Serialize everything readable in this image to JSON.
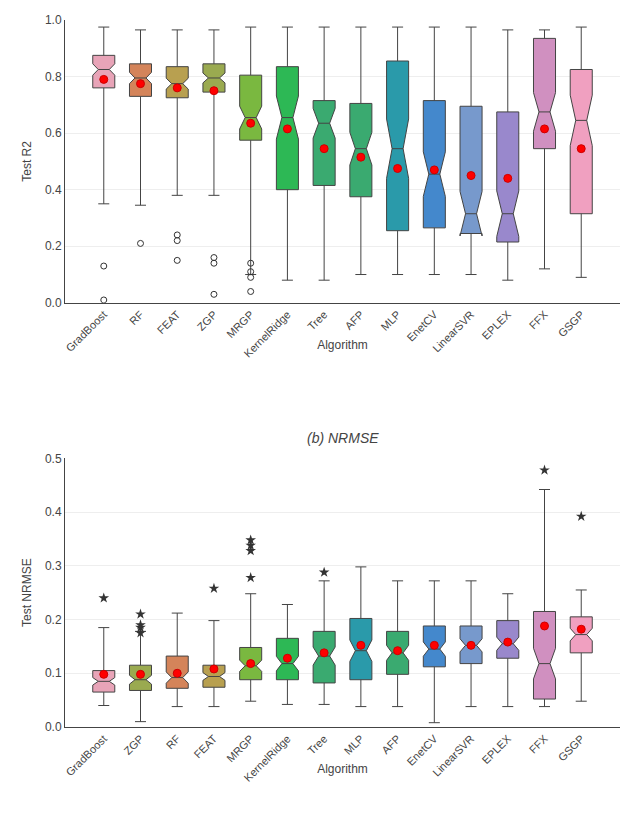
{
  "chart_data": [
    {
      "type": "box",
      "ylabel": "Test R2",
      "xlabel": "Algorithm",
      "categories": [
        "GradBoost",
        "RF",
        "FEAT",
        "ZGP",
        "MRGP",
        "KernelRidge",
        "Tree",
        "AFP",
        "MLP",
        "EnetCV",
        "LinearSVR",
        "EPLEX",
        "FFX",
        "GSGP"
      ],
      "colors": [
        "#e8a4b8",
        "#d4845a",
        "#b8a050",
        "#9aaa50",
        "#7ab840",
        "#2db855",
        "#3aaa70",
        "#3aaa70",
        "#2a9aaa",
        "#4488cc",
        "#7799cc",
        "#9988cc",
        "#d090c0",
        "#f0a0c0"
      ],
      "q1": [
        0.76,
        0.73,
        0.725,
        0.745,
        0.575,
        0.4,
        0.415,
        0.375,
        0.255,
        0.265,
        0.245,
        0.215,
        0.545,
        0.315
      ],
      "median": [
        0.825,
        0.795,
        0.775,
        0.795,
        0.655,
        0.655,
        0.635,
        0.545,
        0.545,
        0.455,
        0.315,
        0.315,
        0.675,
        0.645
      ],
      "q3": [
        0.875,
        0.845,
        0.835,
        0.845,
        0.805,
        0.835,
        0.715,
        0.705,
        0.855,
        0.715,
        0.695,
        0.675,
        0.935,
        0.825
      ],
      "lower_whisker": [
        0.35,
        0.345,
        0.38,
        0.38,
        0.1,
        0.08,
        0.08,
        0.1,
        0.1,
        0.1,
        0.1,
        0.08,
        0.12,
        0.09
      ],
      "upper_whisker": [
        0.975,
        0.965,
        0.965,
        0.965,
        0.975,
        0.975,
        0.975,
        0.975,
        0.975,
        0.975,
        0.975,
        0.965,
        0.965,
        0.975
      ],
      "mean": [
        0.79,
        0.775,
        0.76,
        0.75,
        0.635,
        0.615,
        0.545,
        0.515,
        0.475,
        0.47,
        0.45,
        0.44,
        0.615,
        0.545
      ],
      "outliers_low": [
        [
          0.13,
          0.01
        ],
        [
          0.21
        ],
        [
          0.24,
          0.22,
          0.15
        ],
        [
          0.16,
          0.14,
          0.03
        ],
        [
          0.14,
          0.11,
          0.09,
          0.04
        ],
        [],
        [],
        [],
        [],
        [],
        [],
        [],
        [],
        []
      ],
      "outliers_high": [
        [],
        [],
        [],
        [],
        [],
        [],
        [],
        [],
        [],
        [],
        [],
        [],
        [],
        []
      ],
      "mean_color": "#ff0000",
      "ylim": [
        0.0,
        1.0
      ],
      "yticks": [
        {
          "value": 0,
          "label": "0.0"
        },
        0.2,
        0.4,
        0.6,
        0.8,
        {
          "value": 1,
          "label": "1.0"
        }
      ],
      "grid": true
    },
    {
      "type": "box",
      "title": "(b) NRMSE",
      "ylabel": "Test NRMSE",
      "xlabel": "Algorithm",
      "categories": [
        "GradBoost",
        "ZGP",
        "RF",
        "FEAT",
        "MRGP",
        "KernelRidge",
        "Tree",
        "MLP",
        "AFP",
        "EnetCV",
        "LinearSVR",
        "EPLEX",
        "FFX",
        "GSGP"
      ],
      "colors": [
        "#e8a4b8",
        "#9aaa50",
        "#d4845a",
        "#b8a050",
        "#7ab840",
        "#2db855",
        "#3aaa70",
        "#2a9aaa",
        "#3aaa70",
        "#4488cc",
        "#7799cc",
        "#9988cc",
        "#d090c0",
        "#f0a0c0"
      ],
      "q1": [
        0.065,
        0.068,
        0.072,
        0.074,
        0.088,
        0.088,
        0.082,
        0.088,
        0.098,
        0.112,
        0.118,
        0.128,
        0.052,
        0.138
      ],
      "median": [
        0.085,
        0.088,
        0.092,
        0.094,
        0.114,
        0.118,
        0.132,
        0.142,
        0.138,
        0.145,
        0.152,
        0.155,
        0.118,
        0.172
      ],
      "q3": [
        0.105,
        0.115,
        0.132,
        0.115,
        0.148,
        0.165,
        0.178,
        0.202,
        0.178,
        0.188,
        0.188,
        0.198,
        0.215,
        0.205
      ],
      "lower_whisker": [
        0.04,
        0.01,
        0.038,
        0.038,
        0.048,
        0.042,
        0.042,
        0.038,
        0.038,
        0.008,
        0.038,
        0.038,
        0.038,
        0.048
      ],
      "upper_whisker": [
        0.185,
        0.178,
        0.212,
        0.198,
        0.248,
        0.228,
        0.272,
        0.298,
        0.272,
        0.272,
        0.272,
        0.248,
        0.442,
        0.255
      ],
      "mean": [
        0.098,
        0.098,
        0.1,
        0.108,
        0.118,
        0.128,
        0.138,
        0.152,
        0.142,
        0.152,
        0.152,
        0.158,
        0.188,
        0.182
      ],
      "outliers_low": [
        [],
        [],
        [],
        [],
        [],
        [],
        [],
        [],
        [],
        [],
        [],
        [],
        [],
        []
      ],
      "outliers_high": [
        [
          0.24
        ],
        [
          0.21,
          0.19,
          0.185,
          0.175
        ],
        [],
        [
          0.258
        ],
        [
          0.278,
          0.328,
          0.348,
          0.338
        ],
        [],
        [
          0.288
        ],
        [],
        [],
        [],
        [],
        [],
        [
          0.478
        ],
        [
          0.392
        ]
      ],
      "mean_color": "#ff0000",
      "ylim": [
        0.0,
        0.5
      ],
      "yticks": [
        {
          "value": 0,
          "label": "0.0"
        },
        0.1,
        0.2,
        0.3,
        0.4,
        0.5
      ],
      "grid": true
    }
  ]
}
